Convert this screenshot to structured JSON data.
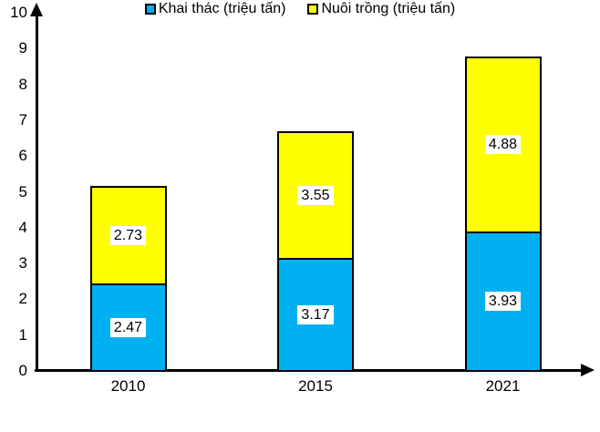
{
  "chart_data": {
    "type": "bar",
    "stacked": true,
    "title": "",
    "categories": [
      "2010",
      "2015",
      "2021"
    ],
    "series": [
      {
        "name": "Khai thác (triệu tấn)",
        "color": "#00B0F0",
        "values": [
          2.47,
          3.17,
          3.93
        ]
      },
      {
        "name": "Nuôi trồng (triệu tấn)",
        "color": "#FFFF00",
        "values": [
          2.73,
          3.55,
          4.88
        ]
      }
    ],
    "ylim": [
      0,
      10
    ],
    "ytick_step": 1,
    "xlabel": "",
    "ylabel": "",
    "grid": false,
    "legend_position": "bottom",
    "axis_color": "#000000",
    "value_label_bg": "#FFFFFF",
    "value_label_decimals": 2
  }
}
